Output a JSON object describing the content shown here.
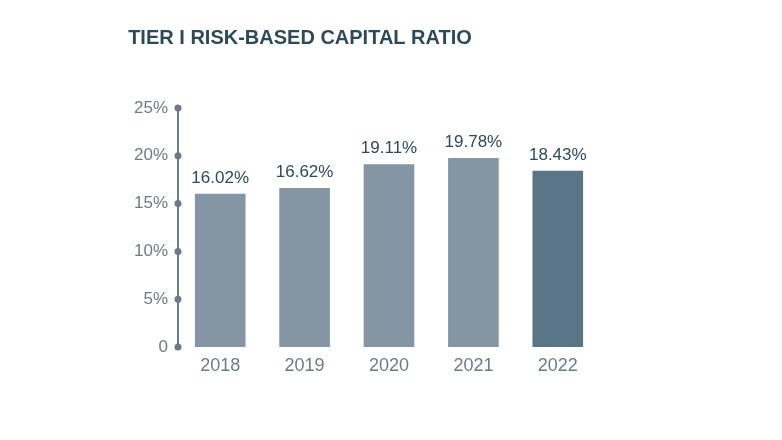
{
  "chart_data": {
    "type": "bar",
    "title": "TIER I RISK-BASED CAPITAL RATIO",
    "categories": [
      "2018",
      "2019",
      "2020",
      "2021",
      "2022"
    ],
    "values": [
      16.02,
      16.62,
      19.11,
      19.78,
      18.43
    ],
    "value_labels": [
      "16.02%",
      "16.62%",
      "19.11%",
      "19.78%",
      "18.43%"
    ],
    "data_labels": true,
    "colors": [
      "#8496a3",
      "#8496a3",
      "#8496a3",
      "#8496a3",
      "#5a7585"
    ],
    "ylim": [
      0,
      25
    ],
    "yticks": [
      0,
      {
        "value": 5,
        "label": "5%"
      },
      {
        "value": 10,
        "label": "10%"
      },
      {
        "value": 15,
        "label": "15%"
      },
      {
        "value": 20,
        "label": "20%"
      },
      {
        "value": 25,
        "label": "25%"
      }
    ],
    "grid": false
  }
}
